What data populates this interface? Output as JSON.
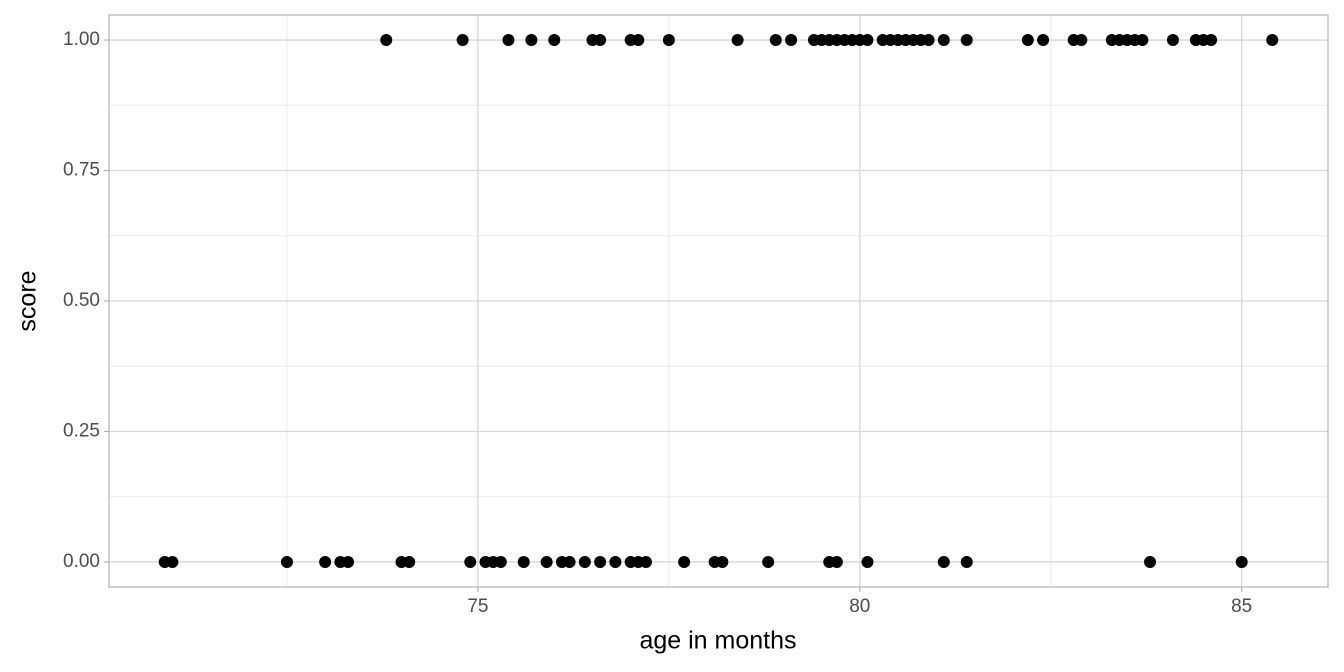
{
  "chart_data": {
    "type": "scatter",
    "x_label": "age in months",
    "y_label": "score",
    "x": [
      73.8,
      74.8,
      75.4,
      75.7,
      76.0,
      76.5,
      76.6,
      77.0,
      77.1,
      77.5,
      78.4,
      78.9,
      79.1,
      79.4,
      79.5,
      79.6,
      79.7,
      79.8,
      79.9,
      80.0,
      80.1,
      80.3,
      80.4,
      80.5,
      80.6,
      80.7,
      80.8,
      80.9,
      81.1,
      81.4,
      82.2,
      82.4,
      82.8,
      82.9,
      83.3,
      83.4,
      83.5,
      83.6,
      83.7,
      84.1,
      84.4,
      84.5,
      84.6,
      85.4,
      70.9,
      71.0,
      72.5,
      73.0,
      73.2,
      73.3,
      74.0,
      74.1,
      74.9,
      75.1,
      75.2,
      75.3,
      75.6,
      75.9,
      76.1,
      76.2,
      76.4,
      76.6,
      76.8,
      77.0,
      77.1,
      77.2,
      77.7,
      78.1,
      78.2,
      78.8,
      79.6,
      79.7,
      80.1,
      81.1,
      81.4,
      83.8,
      85.0
    ],
    "y": [
      1,
      1,
      1,
      1,
      1,
      1,
      1,
      1,
      1,
      1,
      1,
      1,
      1,
      1,
      1,
      1,
      1,
      1,
      1,
      1,
      1,
      1,
      1,
      1,
      1,
      1,
      1,
      1,
      1,
      1,
      1,
      1,
      1,
      1,
      1,
      1,
      1,
      1,
      1,
      1,
      1,
      1,
      1,
      1,
      0,
      0,
      0,
      0,
      0,
      0,
      0,
      0,
      0,
      0,
      0,
      0,
      0,
      0,
      0,
      0,
      0,
      0,
      0,
      0,
      0,
      0,
      0,
      0,
      0,
      0,
      0,
      0,
      0,
      0,
      0,
      0,
      0
    ],
    "color": "#000000",
    "xlim": [
      70.17,
      86.13
    ],
    "ylim": [
      -0.048,
      1.048
    ],
    "xticks": [
      75,
      80,
      85
    ],
    "yticks": [
      {
        "value": 0,
        "label": "0.00"
      },
      {
        "value": 0.25,
        "label": "0.25"
      },
      {
        "value": 0.5,
        "label": "0.50"
      },
      {
        "value": 0.75,
        "label": "0.75"
      },
      {
        "value": 1,
        "label": "1.00"
      }
    ],
    "x_minor_grid": [
      72.5,
      77.5,
      82.5
    ],
    "y_minor_grid": [
      0.125,
      0.375,
      0.625,
      0.875
    ],
    "grid": true
  }
}
